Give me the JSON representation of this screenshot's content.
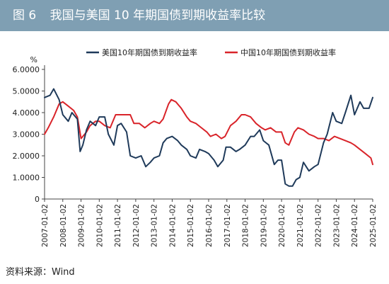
{
  "figure": {
    "number": "图 6",
    "title": "我国与美国 10 年期国债到期收益率比较"
  },
  "source": "资料来源：Wind",
  "colors": {
    "header_bg": "#7f9fb3",
    "us": "#1f3a5a",
    "cn": "#d9242a"
  },
  "chart_data": {
    "type": "line",
    "title": "我国与美国 10 年期国债到期收益率比较",
    "ylabel": "%",
    "ylim": [
      0,
      6
    ],
    "yticks": [
      "0",
      "1.0000",
      "2.0000",
      "3.0000",
      "4.0000",
      "5.0000",
      "6.0000"
    ],
    "xticks": [
      "2007-01-02",
      "2008-01-02",
      "2009-01-02",
      "2010-01-02",
      "2011-01-02",
      "2012-01-02",
      "2013-01-02",
      "2014-01-02",
      "2015-01-02",
      "2016-01-02",
      "2017-01-02",
      "2018-01-02",
      "2019-01-02",
      "2020-01-02",
      "2021-01-02",
      "2022-01-02",
      "2023-01-02",
      "2024-01-02",
      "2025-01-02"
    ],
    "legend_position": "top",
    "series": [
      {
        "name": "美国10年期国债到期收益率",
        "color": "#1f3a5a",
        "x": [
          2007.0,
          2007.3,
          2007.5,
          2007.8,
          2008.0,
          2008.3,
          2008.5,
          2008.8,
          2008.95,
          2009.1,
          2009.3,
          2009.5,
          2009.8,
          2010.0,
          2010.3,
          2010.5,
          2010.8,
          2011.0,
          2011.2,
          2011.5,
          2011.7,
          2012.0,
          2012.3,
          2012.55,
          2012.8,
          2013.0,
          2013.3,
          2013.5,
          2013.7,
          2014.0,
          2014.3,
          2014.5,
          2014.8,
          2015.0,
          2015.3,
          2015.5,
          2015.8,
          2016.0,
          2016.3,
          2016.5,
          2016.8,
          2016.95,
          2017.2,
          2017.5,
          2017.7,
          2018.0,
          2018.3,
          2018.5,
          2018.8,
          2019.0,
          2019.3,
          2019.6,
          2019.8,
          2020.0,
          2020.2,
          2020.4,
          2020.6,
          2020.8,
          2021.0,
          2021.2,
          2021.5,
          2021.8,
          2022.0,
          2022.3,
          2022.5,
          2022.8,
          2023.0,
          2023.3,
          2023.5,
          2023.8,
          2024.0,
          2024.3,
          2024.5,
          2024.8,
          2025.0
        ],
        "values": [
          4.7,
          4.8,
          5.1,
          4.6,
          3.9,
          3.6,
          4.0,
          3.7,
          2.2,
          2.5,
          3.2,
          3.6,
          3.4,
          3.8,
          3.8,
          3.0,
          2.5,
          3.4,
          3.5,
          3.1,
          2.0,
          1.9,
          2.0,
          1.5,
          1.7,
          1.9,
          2.0,
          2.6,
          2.8,
          2.9,
          2.7,
          2.5,
          2.3,
          2.0,
          1.9,
          2.3,
          2.2,
          2.1,
          1.8,
          1.5,
          1.8,
          2.4,
          2.4,
          2.2,
          2.3,
          2.5,
          2.9,
          2.9,
          3.2,
          2.7,
          2.5,
          1.6,
          1.8,
          1.8,
          0.7,
          0.6,
          0.6,
          0.9,
          1.0,
          1.7,
          1.3,
          1.5,
          1.6,
          2.6,
          3.0,
          4.0,
          3.6,
          3.5,
          4.0,
          4.8,
          3.9,
          4.5,
          4.2,
          4.2,
          4.7
        ]
      },
      {
        "name": "中国10年期国债到期收益率",
        "color": "#d9242a",
        "x": [
          2007.0,
          2007.2,
          2007.5,
          2007.8,
          2008.0,
          2008.3,
          2008.6,
          2008.8,
          2009.0,
          2009.3,
          2009.5,
          2009.8,
          2010.0,
          2010.3,
          2010.6,
          2010.9,
          2011.1,
          2011.4,
          2011.7,
          2011.9,
          2012.2,
          2012.5,
          2012.8,
          2013.0,
          2013.3,
          2013.5,
          2013.8,
          2013.95,
          2014.2,
          2014.5,
          2014.8,
          2015.0,
          2015.3,
          2015.6,
          2015.9,
          2016.1,
          2016.4,
          2016.7,
          2016.9,
          2017.2,
          2017.5,
          2017.8,
          2018.0,
          2018.3,
          2018.6,
          2018.9,
          2019.1,
          2019.4,
          2019.7,
          2020.0,
          2020.2,
          2020.4,
          2020.7,
          2020.9,
          2021.2,
          2021.5,
          2021.8,
          2022.0,
          2022.3,
          2022.6,
          2022.9,
          2023.2,
          2023.5,
          2023.8,
          2024.0,
          2024.3,
          2024.6,
          2024.9,
          2025.0
        ],
        "values": [
          3.0,
          3.3,
          3.8,
          4.4,
          4.5,
          4.3,
          4.1,
          3.8,
          2.8,
          3.1,
          3.4,
          3.6,
          3.6,
          3.4,
          3.3,
          3.9,
          3.9,
          3.9,
          3.9,
          3.5,
          3.5,
          3.3,
          3.5,
          3.6,
          3.5,
          3.7,
          4.4,
          4.6,
          4.5,
          4.2,
          3.8,
          3.6,
          3.5,
          3.3,
          3.1,
          2.9,
          3.0,
          2.8,
          2.9,
          3.4,
          3.6,
          3.9,
          3.9,
          3.8,
          3.5,
          3.3,
          3.2,
          3.3,
          3.1,
          3.1,
          2.6,
          2.5,
          3.1,
          3.3,
          3.2,
          3.0,
          2.9,
          2.8,
          2.8,
          2.7,
          2.9,
          2.8,
          2.7,
          2.6,
          2.5,
          2.3,
          2.1,
          1.9,
          1.6
        ]
      }
    ]
  }
}
